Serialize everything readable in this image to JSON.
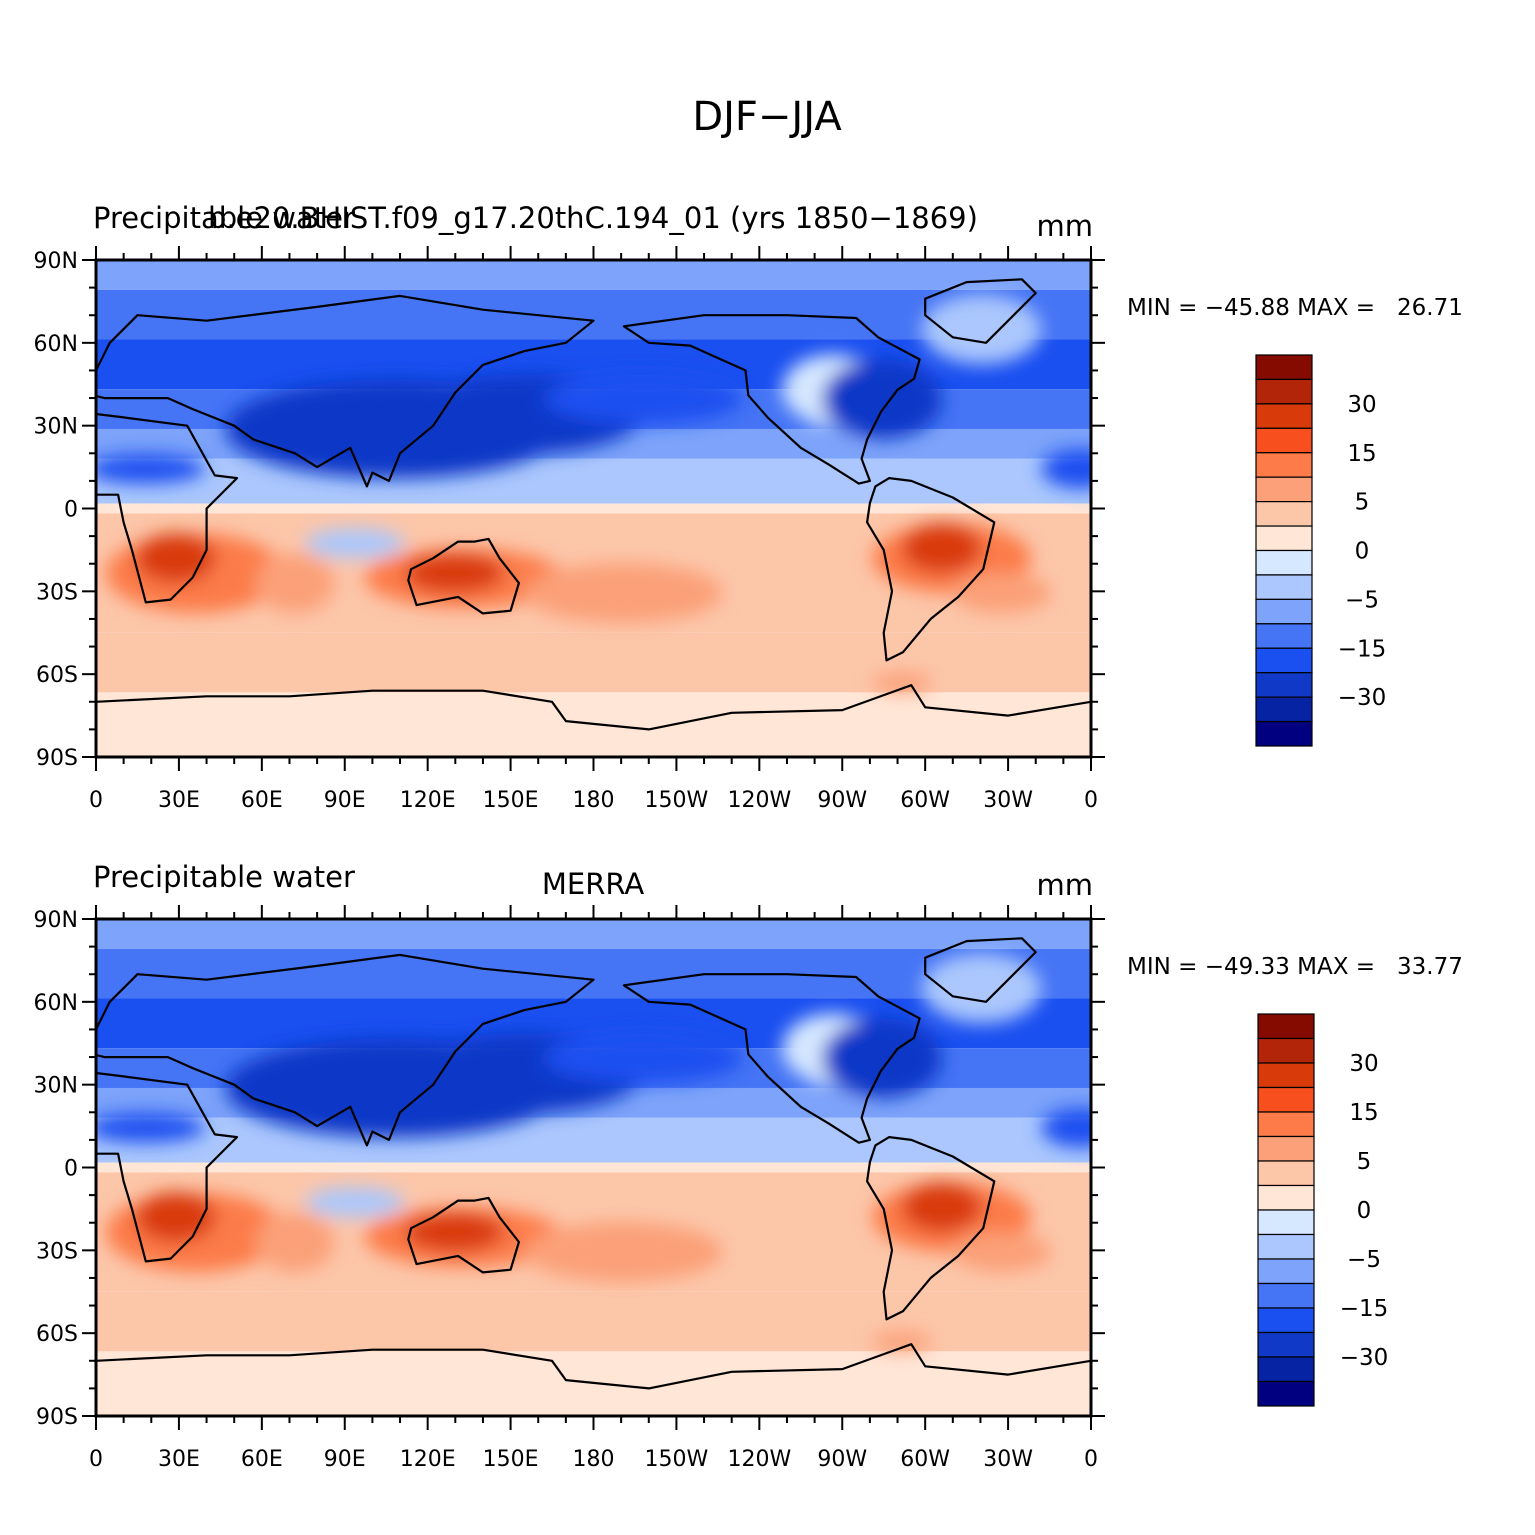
{
  "figure": {
    "title": "DJF−JJA"
  },
  "axes": {
    "lat_labels": [
      "90N",
      "60N",
      "30N",
      "0",
      "30S",
      "60S",
      "90S"
    ],
    "lon_labels": [
      "0",
      "30E",
      "60E",
      "90E",
      "120E",
      "150E",
      "180",
      "150W",
      "120W",
      "90W",
      "60W",
      "30W",
      "0"
    ]
  },
  "colorbar": {
    "colors": [
      "#000080",
      "#0523a3",
      "#1039c7",
      "#1a4ff0",
      "#4574f5",
      "#7da3fa",
      "#abc7fd",
      "#d6e8ff",
      "#ffe6d7",
      "#fcc6a9",
      "#fba078",
      "#fc7b48",
      "#f74f1d",
      "#d93a0a",
      "#b32508",
      "#850a00"
    ],
    "labels": [
      "30",
      "15",
      "5",
      "0",
      "−5",
      "−15",
      "−30"
    ]
  },
  "panels": [
    {
      "left_title": "Precipitable water",
      "center_title": "b.e20.BHIST.f09_g17.20thC.194_01 (yrs 1850−1869)",
      "units": "mm",
      "stats": "MIN = −45.88 MAX =   26.71"
    },
    {
      "left_title": "Precipitable water",
      "center_title": "MERRA",
      "units": "mm",
      "stats": "MIN = −49.33 MAX =   33.77"
    }
  ]
}
